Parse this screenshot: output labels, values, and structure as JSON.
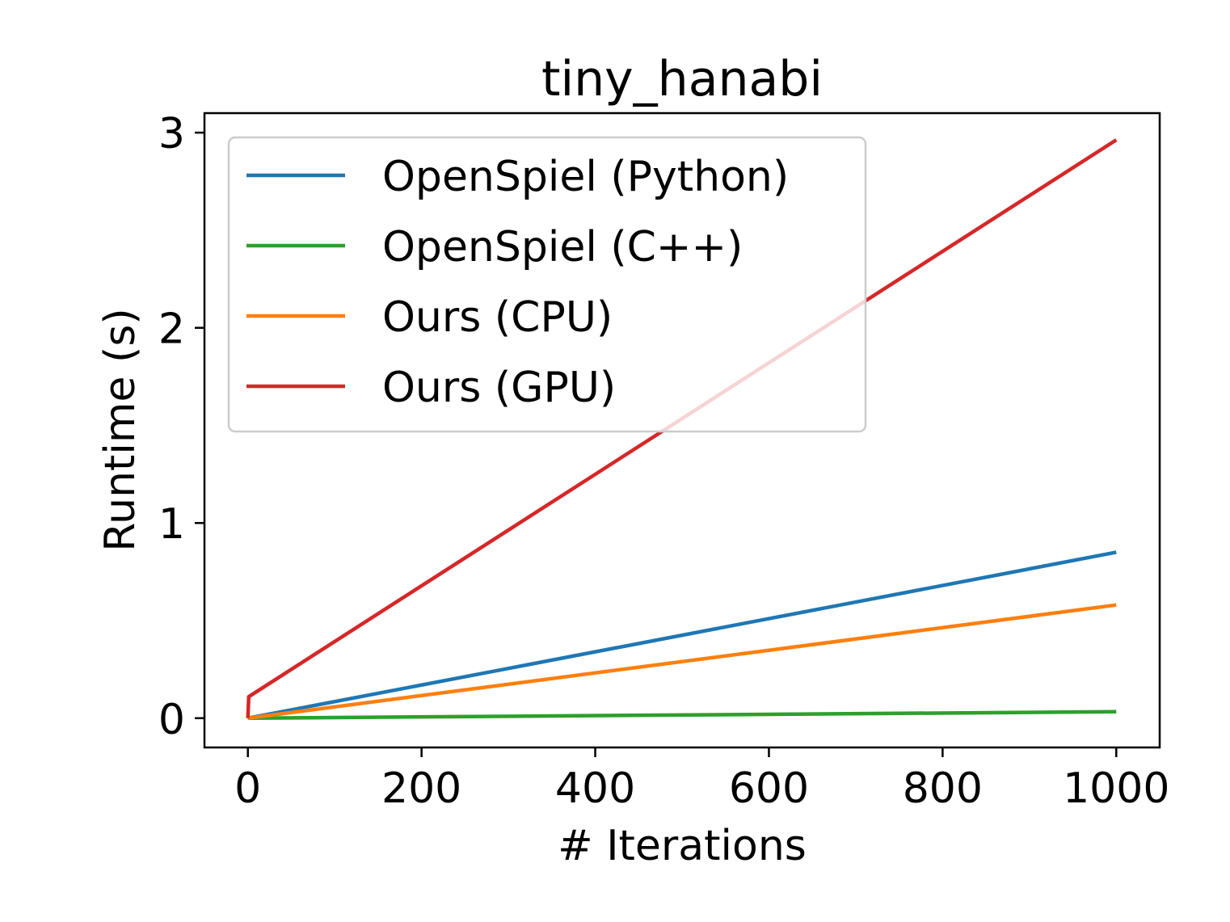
{
  "chart_data": {
    "type": "line",
    "title": "tiny_hanabi",
    "xlabel": "# Iterations",
    "ylabel": "Runtime (s)",
    "xlim": [
      -50,
      1050
    ],
    "ylim": [
      -0.15,
      3.1
    ],
    "xticks": [
      0,
      200,
      400,
      600,
      800,
      1000
    ],
    "xtick_labels": [
      "0",
      "200",
      "400",
      "600",
      "800",
      "1000"
    ],
    "yticks": [
      0,
      1,
      2,
      3
    ],
    "ytick_labels": [
      "0",
      "1",
      "2",
      "3"
    ],
    "grid": false,
    "legend_position": "top-left",
    "series": [
      {
        "name": "OpenSpiel (Python)",
        "color": "#1f77b4",
        "x": [
          0,
          1000
        ],
        "y": [
          0,
          0.85
        ]
      },
      {
        "name": "OpenSpiel (C++)",
        "color": "#2ca02c",
        "x": [
          0,
          1000
        ],
        "y": [
          0,
          0.033
        ]
      },
      {
        "name": "Ours (CPU)",
        "color": "#ff7f0e",
        "x": [
          0,
          1000
        ],
        "y": [
          0,
          0.58
        ]
      },
      {
        "name": "Ours (GPU)",
        "color": "#d62728",
        "x": [
          0,
          1,
          1000
        ],
        "y": [
          0,
          0.11,
          2.963
        ]
      }
    ]
  }
}
